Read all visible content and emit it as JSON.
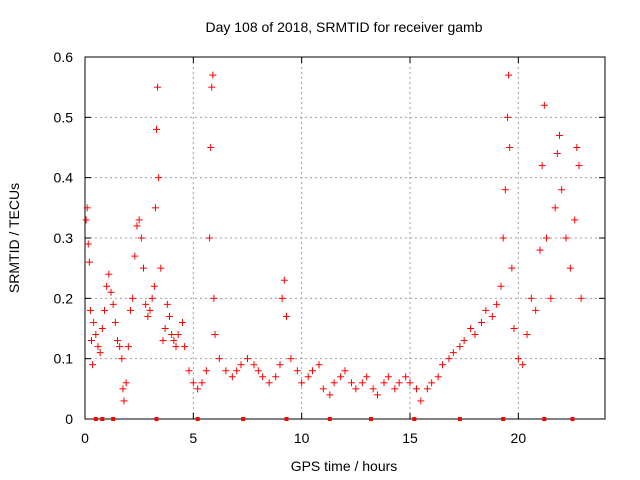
{
  "chart_data": {
    "type": "scatter",
    "title": "Day 108 of 2018, SRMTID for receiver gamb",
    "xlabel": "GPS time / hours",
    "ylabel": "SRMTID / TECUs",
    "xlim": [
      0,
      24
    ],
    "ylim": [
      0,
      0.6
    ],
    "x_ticks": [
      0,
      5,
      10,
      15,
      20
    ],
    "x_tick_labels": [
      "0",
      "5",
      "10",
      "15",
      "20"
    ],
    "y_ticks": [
      0,
      0.1,
      0.2,
      0.3,
      0.4,
      0.5,
      0.6
    ],
    "y_tick_labels": [
      "0",
      "0.1",
      "0.2",
      "0.3",
      "0.4",
      "0.5",
      "0.6"
    ],
    "grid": true,
    "marker": "plus",
    "color": "#ff0000",
    "series": [
      {
        "name": "SRMTID",
        "points": [
          [
            0.05,
            0.33
          ],
          [
            0.1,
            0.35
          ],
          [
            0.15,
            0.29
          ],
          [
            0.2,
            0.26
          ],
          [
            0.25,
            0.18
          ],
          [
            0.3,
            0.13
          ],
          [
            0.35,
            0.09
          ],
          [
            0.4,
            0.16
          ],
          [
            0.5,
            0.14
          ],
          [
            0.6,
            0.12
          ],
          [
            0.7,
            0.11
          ],
          [
            0.8,
            0.15
          ],
          [
            0.9,
            0.18
          ],
          [
            1.0,
            0.22
          ],
          [
            1.1,
            0.24
          ],
          [
            1.2,
            0.21
          ],
          [
            1.3,
            0.19
          ],
          [
            1.4,
            0.16
          ],
          [
            1.5,
            0.13
          ],
          [
            1.6,
            0.12
          ],
          [
            1.7,
            0.1
          ],
          [
            1.75,
            0.05
          ],
          [
            1.8,
            0.03
          ],
          [
            1.9,
            0.06
          ],
          [
            2.0,
            0.12
          ],
          [
            2.1,
            0.18
          ],
          [
            2.2,
            0.2
          ],
          [
            2.3,
            0.27
          ],
          [
            2.4,
            0.32
          ],
          [
            2.5,
            0.33
          ],
          [
            2.6,
            0.3
          ],
          [
            2.7,
            0.25
          ],
          [
            2.8,
            0.19
          ],
          [
            2.9,
            0.17
          ],
          [
            3.0,
            0.18
          ],
          [
            3.1,
            0.2
          ],
          [
            3.2,
            0.22
          ],
          [
            3.25,
            0.35
          ],
          [
            3.3,
            0.48
          ],
          [
            3.35,
            0.55
          ],
          [
            3.4,
            0.4
          ],
          [
            3.5,
            0.25
          ],
          [
            3.6,
            0.13
          ],
          [
            3.7,
            0.15
          ],
          [
            3.8,
            0.19
          ],
          [
            3.9,
            0.17
          ],
          [
            4.0,
            0.14
          ],
          [
            4.1,
            0.13
          ],
          [
            4.2,
            0.12
          ],
          [
            4.3,
            0.14
          ],
          [
            4.5,
            0.16
          ],
          [
            4.6,
            0.12
          ],
          [
            4.8,
            0.08
          ],
          [
            5.0,
            0.06
          ],
          [
            5.2,
            0.05
          ],
          [
            5.4,
            0.06
          ],
          [
            5.6,
            0.08
          ],
          [
            5.75,
            0.3
          ],
          [
            5.8,
            0.45
          ],
          [
            5.85,
            0.55
          ],
          [
            5.9,
            0.57
          ],
          [
            5.95,
            0.2
          ],
          [
            6.0,
            0.14
          ],
          [
            6.2,
            0.1
          ],
          [
            6.5,
            0.08
          ],
          [
            6.8,
            0.07
          ],
          [
            7.0,
            0.08
          ],
          [
            7.2,
            0.09
          ],
          [
            7.5,
            0.1
          ],
          [
            7.8,
            0.09
          ],
          [
            8.0,
            0.08
          ],
          [
            8.2,
            0.07
          ],
          [
            8.5,
            0.06
          ],
          [
            8.8,
            0.07
          ],
          [
            9.0,
            0.09
          ],
          [
            9.1,
            0.2
          ],
          [
            9.2,
            0.23
          ],
          [
            9.3,
            0.17
          ],
          [
            9.5,
            0.1
          ],
          [
            9.8,
            0.08
          ],
          [
            10.0,
            0.06
          ],
          [
            10.3,
            0.07
          ],
          [
            10.5,
            0.08
          ],
          [
            10.8,
            0.09
          ],
          [
            11.0,
            0.05
          ],
          [
            11.3,
            0.04
          ],
          [
            11.5,
            0.06
          ],
          [
            11.8,
            0.07
          ],
          [
            12.0,
            0.08
          ],
          [
            12.3,
            0.06
          ],
          [
            12.5,
            0.05
          ],
          [
            12.8,
            0.06
          ],
          [
            13.0,
            0.07
          ],
          [
            13.3,
            0.05
          ],
          [
            13.5,
            0.04
          ],
          [
            13.8,
            0.06
          ],
          [
            14.0,
            0.07
          ],
          [
            14.3,
            0.05
          ],
          [
            14.5,
            0.06
          ],
          [
            14.8,
            0.07
          ],
          [
            15.0,
            0.06
          ],
          [
            15.3,
            0.05
          ],
          [
            15.5,
            0.03
          ],
          [
            15.8,
            0.05
          ],
          [
            16.0,
            0.06
          ],
          [
            16.3,
            0.07
          ],
          [
            16.5,
            0.09
          ],
          [
            16.8,
            0.1
          ],
          [
            17.0,
            0.11
          ],
          [
            17.3,
            0.12
          ],
          [
            17.5,
            0.13
          ],
          [
            17.8,
            0.15
          ],
          [
            18.0,
            0.14
          ],
          [
            18.3,
            0.16
          ],
          [
            18.5,
            0.18
          ],
          [
            18.8,
            0.17
          ],
          [
            19.0,
            0.19
          ],
          [
            19.2,
            0.22
          ],
          [
            19.3,
            0.3
          ],
          [
            19.4,
            0.38
          ],
          [
            19.5,
            0.5
          ],
          [
            19.55,
            0.57
          ],
          [
            19.6,
            0.45
          ],
          [
            19.7,
            0.25
          ],
          [
            19.8,
            0.15
          ],
          [
            20.0,
            0.1
          ],
          [
            20.2,
            0.09
          ],
          [
            20.4,
            0.14
          ],
          [
            20.6,
            0.2
          ],
          [
            20.8,
            0.18
          ],
          [
            21.0,
            0.28
          ],
          [
            21.1,
            0.42
          ],
          [
            21.2,
            0.52
          ],
          [
            21.3,
            0.3
          ],
          [
            21.5,
            0.2
          ],
          [
            21.7,
            0.35
          ],
          [
            21.8,
            0.44
          ],
          [
            21.9,
            0.47
          ],
          [
            22.0,
            0.38
          ],
          [
            22.2,
            0.3
          ],
          [
            22.4,
            0.25
          ],
          [
            22.6,
            0.33
          ],
          [
            22.7,
            0.45
          ],
          [
            22.8,
            0.42
          ],
          [
            22.9,
            0.2
          ]
        ]
      }
    ],
    "tick_markers_x": [
      0.5,
      0.8,
      1.3,
      3.3,
      5.2,
      7.3,
      9.3,
      11.3,
      13.2,
      15.2,
      17.3,
      19.3,
      21.2,
      22.5
    ]
  }
}
